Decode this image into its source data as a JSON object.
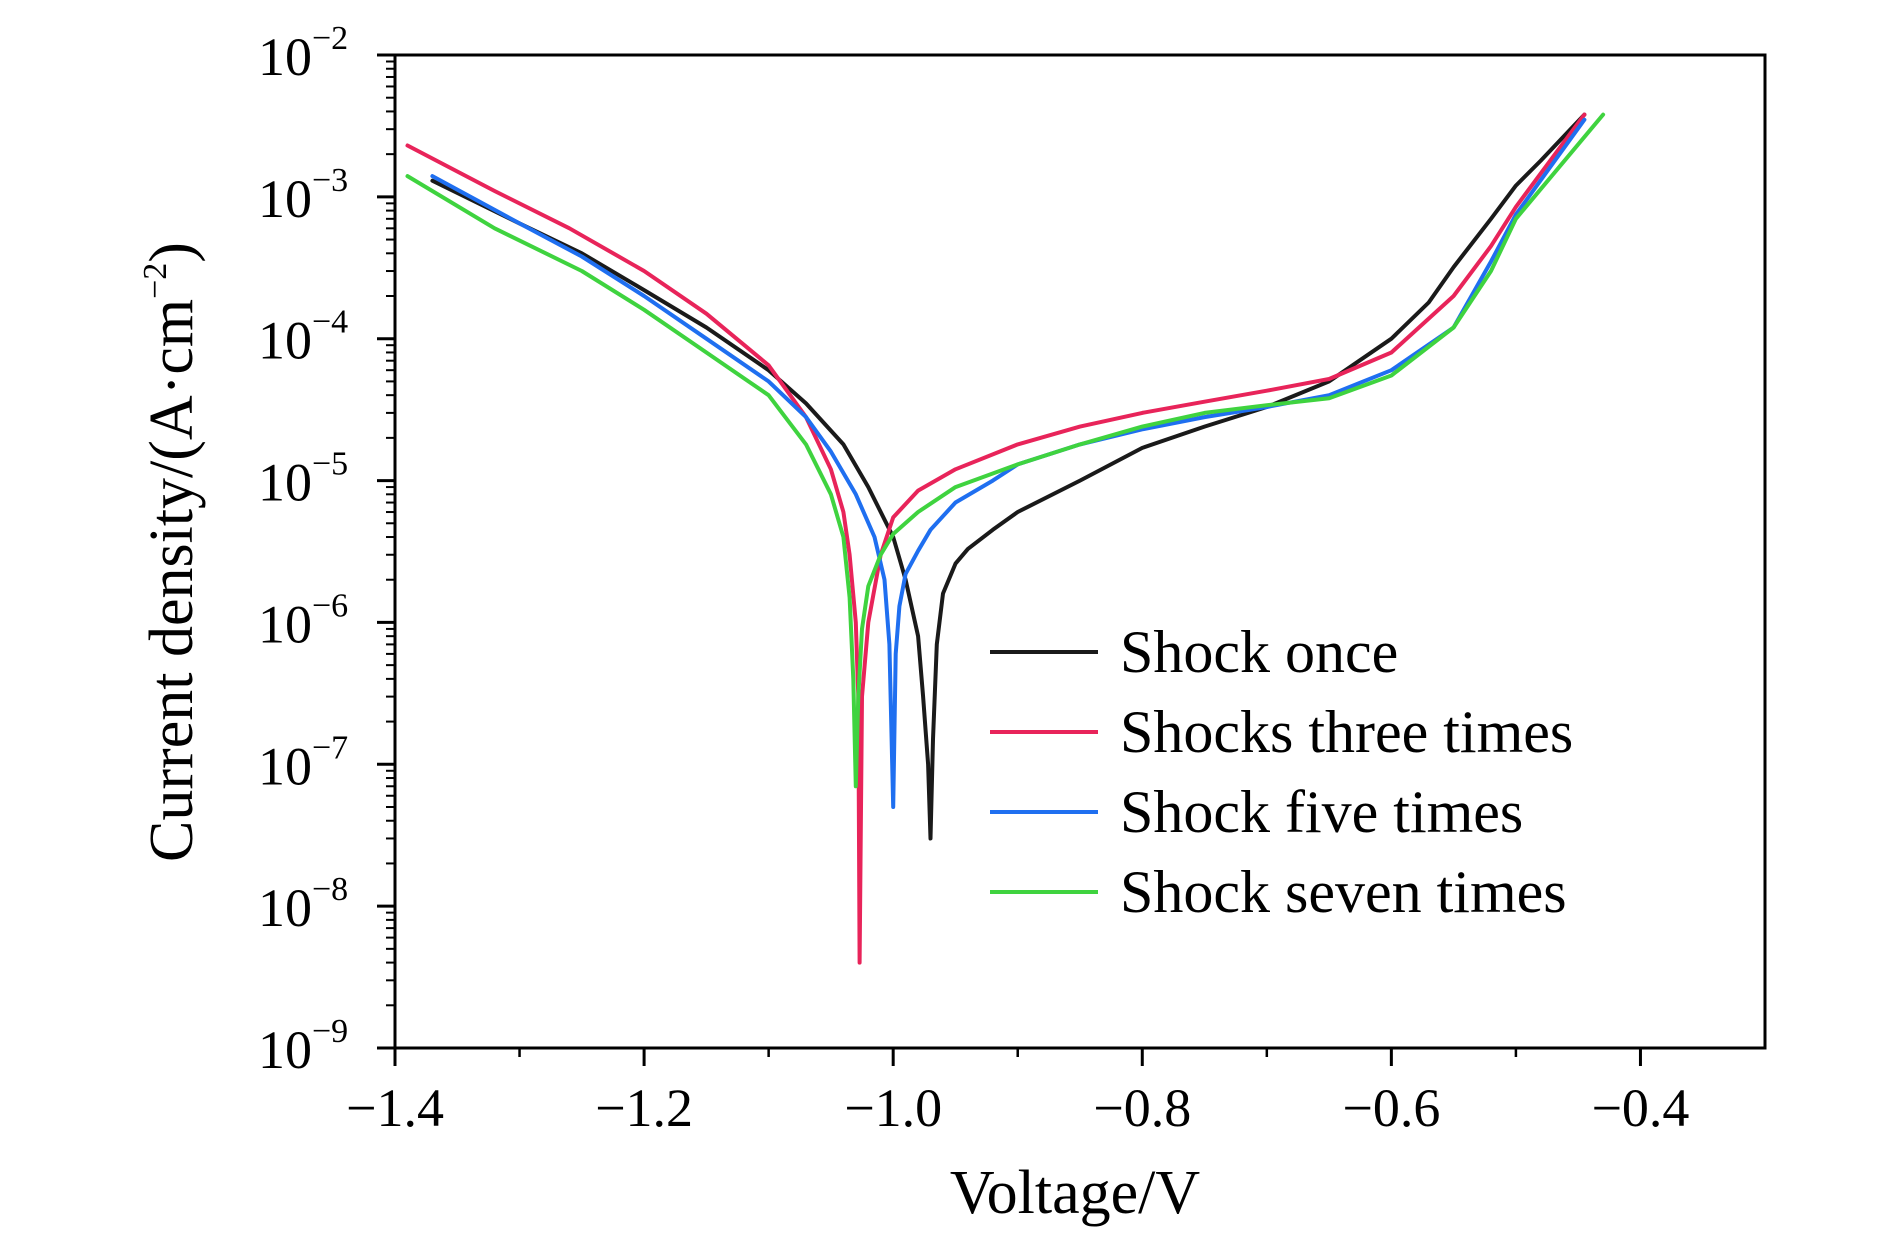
{
  "chart_data": {
    "type": "line",
    "xlabel": "Voltage/V",
    "ylabel": "Current density/(A·cm",
    "ylabel_sup": "−2",
    "ylabel_close": ")",
    "xlim": [
      -1.4,
      -0.3
    ],
    "ylim_log10": [
      -9,
      -2
    ],
    "y_scale": "log",
    "x_ticks": [
      -1.4,
      -1.2,
      -1.0,
      -0.8,
      -0.6,
      -0.4
    ],
    "x_tick_labels": [
      "−1.4",
      "−1.2",
      "−1.0",
      "−0.8",
      "−0.6",
      "−0.4"
    ],
    "y_ticks_log10": [
      -2,
      -3,
      -4,
      -5,
      -6,
      -7,
      -8,
      -9
    ],
    "y_tick_base": "10",
    "y_tick_exponents": [
      "−2",
      "−3",
      "−4",
      "−5",
      "−6",
      "−7",
      "−8",
      "−9"
    ],
    "grid": false,
    "legend_position": "center-right",
    "series": [
      {
        "name": "Shock once",
        "color": "#1a1a1a",
        "x": [
          -1.37,
          -1.3,
          -1.25,
          -1.2,
          -1.15,
          -1.1,
          -1.07,
          -1.04,
          -1.02,
          -1.0,
          -0.99,
          -0.98,
          -0.976,
          -0.972,
          -0.97,
          -0.968,
          -0.965,
          -0.96,
          -0.95,
          -0.94,
          -0.92,
          -0.9,
          -0.85,
          -0.8,
          -0.75,
          -0.7,
          -0.65,
          -0.6,
          -0.57,
          -0.55,
          -0.52,
          -0.5,
          -0.48,
          -0.445
        ],
        "y": [
          0.0013,
          0.00065,
          0.0004,
          0.00022,
          0.00012,
          6e-05,
          3.5e-05,
          1.8e-05,
          9e-06,
          4e-06,
          2e-06,
          8e-07,
          3e-07,
          1e-07,
          3e-08,
          1.5e-07,
          7e-07,
          1.6e-06,
          2.6e-06,
          3.3e-06,
          4.5e-06,
          6e-06,
          1e-05,
          1.7e-05,
          2.4e-05,
          3.3e-05,
          5e-05,
          0.0001,
          0.00018,
          0.00032,
          0.0007,
          0.0012,
          0.0018,
          0.0038
        ]
      },
      {
        "name": "Shocks three times",
        "color": "#e8245a",
        "x": [
          -1.39,
          -1.32,
          -1.26,
          -1.2,
          -1.15,
          -1.1,
          -1.07,
          -1.05,
          -1.04,
          -1.035,
          -1.03,
          -1.028,
          -1.027,
          -1.025,
          -1.02,
          -1.01,
          -1.0,
          -0.98,
          -0.95,
          -0.9,
          -0.85,
          -0.8,
          -0.75,
          -0.7,
          -0.65,
          -0.6,
          -0.55,
          -0.52,
          -0.5,
          -0.445
        ],
        "y": [
          0.0023,
          0.0011,
          0.0006,
          0.0003,
          0.00015,
          6.5e-05,
          2.8e-05,
          1.2e-05,
          6e-06,
          3e-06,
          1e-06,
          3e-07,
          4e-09,
          3e-07,
          1e-06,
          3e-06,
          5.5e-06,
          8.5e-06,
          1.2e-05,
          1.8e-05,
          2.4e-05,
          3e-05,
          3.6e-05,
          4.3e-05,
          5.2e-05,
          8e-05,
          0.0002,
          0.00045,
          0.00085,
          0.0038
        ]
      },
      {
        "name": "Shock five times",
        "color": "#1f6ff0",
        "x": [
          -1.37,
          -1.3,
          -1.25,
          -1.2,
          -1.15,
          -1.1,
          -1.07,
          -1.05,
          -1.03,
          -1.015,
          -1.007,
          -1.003,
          -1.0,
          -0.998,
          -0.995,
          -0.99,
          -0.98,
          -0.97,
          -0.95,
          -0.92,
          -0.9,
          -0.85,
          -0.8,
          -0.75,
          -0.7,
          -0.65,
          -0.6,
          -0.55,
          -0.52,
          -0.5,
          -0.445
        ],
        "y": [
          0.0014,
          0.00065,
          0.00038,
          0.0002,
          0.0001,
          5e-05,
          2.8e-05,
          1.6e-05,
          8e-06,
          4e-06,
          2e-06,
          7e-07,
          5e-08,
          6e-07,
          1.3e-06,
          2.2e-06,
          3.2e-06,
          4.5e-06,
          7e-06,
          1e-05,
          1.3e-05,
          1.8e-05,
          2.3e-05,
          2.8e-05,
          3.3e-05,
          4e-05,
          6e-05,
          0.00012,
          0.00035,
          0.00075,
          0.0035
        ]
      },
      {
        "name": "Shock seven times",
        "color": "#3fd33f",
        "x": [
          -1.39,
          -1.32,
          -1.25,
          -1.2,
          -1.15,
          -1.1,
          -1.07,
          -1.05,
          -1.04,
          -1.035,
          -1.032,
          -1.03,
          -1.028,
          -1.025,
          -1.02,
          -1.01,
          -1.0,
          -0.98,
          -0.95,
          -0.9,
          -0.85,
          -0.8,
          -0.75,
          -0.7,
          -0.65,
          -0.6,
          -0.55,
          -0.52,
          -0.5,
          -0.43
        ],
        "y": [
          0.0014,
          0.0006,
          0.0003,
          0.00016,
          8e-05,
          4e-05,
          1.8e-05,
          8e-06,
          4e-06,
          1.5e-06,
          4e-07,
          7e-08,
          3e-07,
          9e-07,
          1.8e-06,
          3e-06,
          4.2e-06,
          6e-06,
          9e-06,
          1.3e-05,
          1.8e-05,
          2.4e-05,
          3e-05,
          3.4e-05,
          3.8e-05,
          5.5e-05,
          0.00012,
          0.0003,
          0.0007,
          0.0038
        ]
      }
    ]
  }
}
